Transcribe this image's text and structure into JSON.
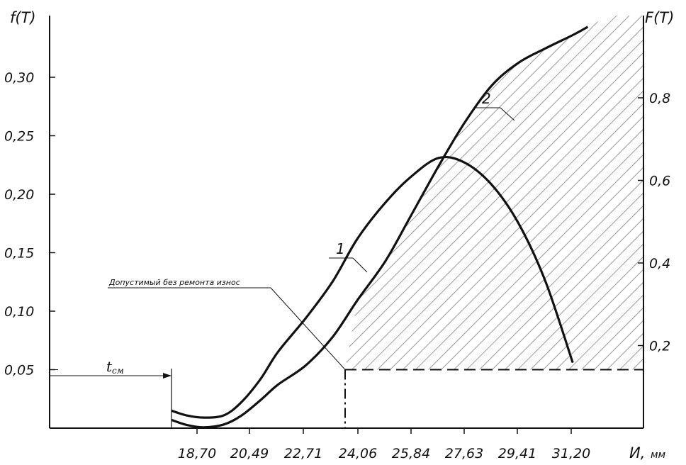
{
  "chart_data": {
    "type": "line",
    "title": "",
    "left_axis_title": "f(T)",
    "right_axis_title": "F(T)",
    "x_axis_title": "И,",
    "x_axis_unit": "мм",
    "x_ticks": [
      "18,70",
      "20,49",
      "22,71",
      "24,06",
      "25,84",
      "27,63",
      "29,41",
      "31,20"
    ],
    "x_tick_values": [
      18.7,
      20.49,
      22.71,
      24.06,
      25.84,
      27.63,
      29.41,
      31.2
    ],
    "left_ticks": [
      "0,05",
      "0,10",
      "0,15",
      "0,20",
      "0,25",
      "0,30"
    ],
    "left_tick_values": [
      0.05,
      0.1,
      0.15,
      0.2,
      0.25,
      0.3
    ],
    "right_ticks": [
      "0,2",
      "0,4",
      "0,6",
      "0,8"
    ],
    "right_tick_values": [
      0.2,
      0.4,
      0.6,
      0.8
    ],
    "series": [
      {
        "name": "1",
        "axis": "left",
        "x": [
          18.7,
          19.2,
          19.8,
          20.49,
          21.2,
          22.0,
          22.71,
          23.4,
          24.06,
          24.9,
          25.84,
          26.7,
          27.63,
          28.5,
          29.41,
          30.3,
          31.2,
          32.1
        ],
        "y": [
          0.015,
          0.011,
          0.009,
          0.011,
          0.022,
          0.042,
          0.065,
          0.094,
          0.125,
          0.162,
          0.193,
          0.215,
          0.231,
          0.227,
          0.208,
          0.175,
          0.125,
          0.056
        ]
      },
      {
        "name": "2",
        "axis": "right",
        "x": [
          18.7,
          19.2,
          19.8,
          20.49,
          21.2,
          22.0,
          22.71,
          23.4,
          24.06,
          24.9,
          25.84,
          26.7,
          27.63,
          28.5,
          29.41,
          30.3,
          31.2,
          32.1,
          32.6
        ],
        "y": [
          0.02,
          0.008,
          0.002,
          0.009,
          0.03,
          0.068,
          0.105,
          0.152,
          0.22,
          0.31,
          0.405,
          0.515,
          0.635,
          0.74,
          0.83,
          0.885,
          0.92,
          0.952,
          0.972
        ]
      }
    ],
    "annotations": {
      "allowed_wear_label": "Допустимый без ремонта износ",
      "tsm_main": "t",
      "tsm_sub": "см",
      "threshold_y": 0.05,
      "threshold_x": 23.6,
      "tsm_x": 18.7
    },
    "grid": false
  }
}
